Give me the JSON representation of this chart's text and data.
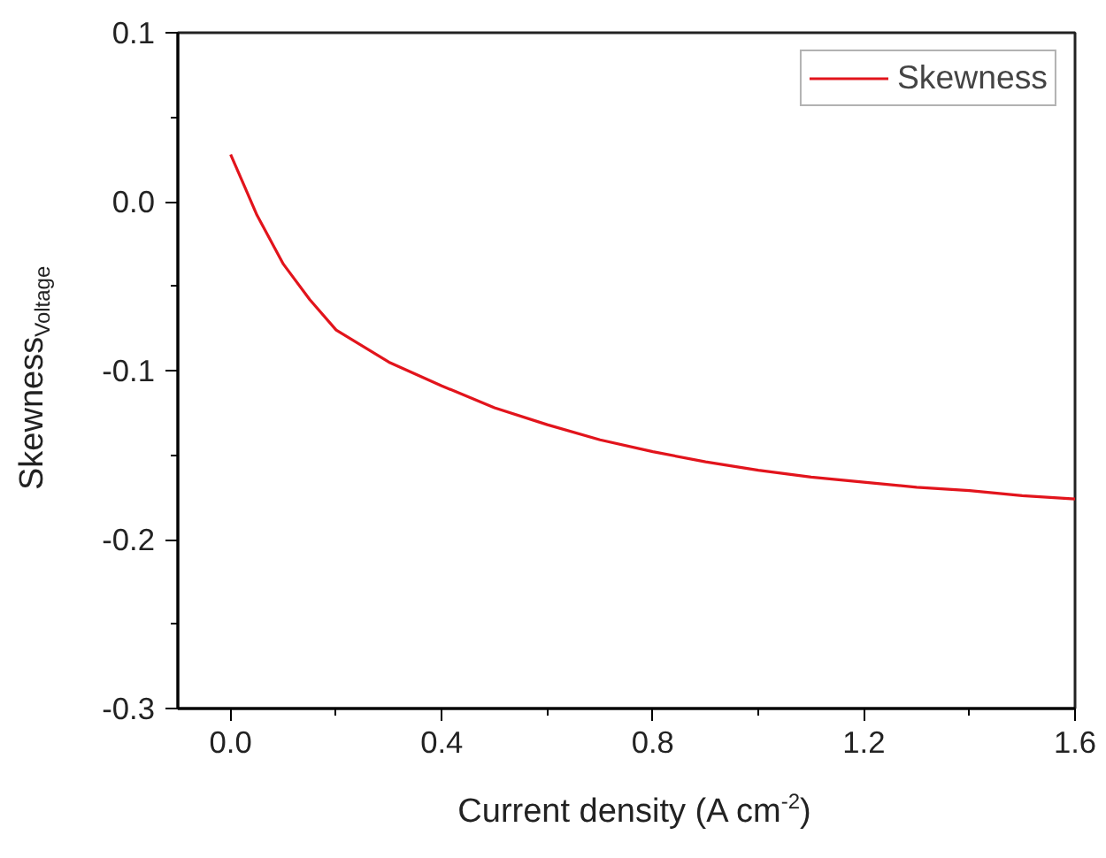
{
  "chart_data": {
    "type": "line",
    "xlabel": "Current density (A cm$^{-2}$)",
    "ylabel": "Skewness$_{Voltage}$",
    "xlim": [
      -0.1,
      1.6
    ],
    "ylim": [
      -0.3,
      0.1
    ],
    "xticks": [
      {
        "value": 0,
        "label": "0.0"
      },
      0.4,
      0.8,
      1.2,
      1.6
    ],
    "yticks": [
      -0.3,
      -0.2,
      -0.1,
      {
        "value": 0,
        "label": "0.0"
      },
      0.1
    ],
    "x": [
      0,
      0.025,
      0.05,
      0.1,
      0.15,
      0.2,
      0.3,
      0.4,
      0.5,
      0.6,
      0.7,
      0.8,
      0.9,
      1.0,
      1.1,
      1.2,
      1.3,
      1.4,
      1.5,
      1.6
    ],
    "series": [
      {
        "name": "Skewness",
        "color": "#e2141c",
        "values": [
          0.028,
          0.01,
          -0.008,
          -0.037,
          -0.058,
          -0.076,
          -0.095,
          -0.109,
          -0.122,
          -0.132,
          -0.141,
          -0.148,
          -0.154,
          -0.159,
          -0.163,
          -0.166,
          -0.169,
          -0.171,
          -0.174,
          -0.176
        ]
      }
    ],
    "legend": "top right",
    "grid": false,
    "marker": "none",
    "line_style": "solid"
  }
}
